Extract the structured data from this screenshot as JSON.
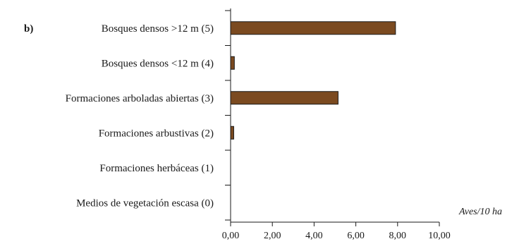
{
  "chart_data": {
    "type": "bar",
    "orientation": "horizontal",
    "panel_label": "b)",
    "categories": [
      "Bosques densos >12 m (5)",
      "Bosques densos <12 m (4)",
      "Formaciones arboladas abiertas (3)",
      "Formaciones arbustivas (2)",
      "Formaciones herbáceas (1)",
      "Medios de vegetación escasa (0)"
    ],
    "values": [
      7.9,
      0.18,
      5.15,
      0.15,
      0,
      0
    ],
    "xlabel": "Aves/10 ha",
    "ylabel": "",
    "xlim": [
      0,
      10
    ],
    "xticks": [
      "0,00",
      "2,00",
      "4,00",
      "6,00",
      "8,00",
      "10,00"
    ],
    "bar_color": "#7b4a20",
    "bar_edge_color": "#1a1a1a",
    "grid": false
  }
}
